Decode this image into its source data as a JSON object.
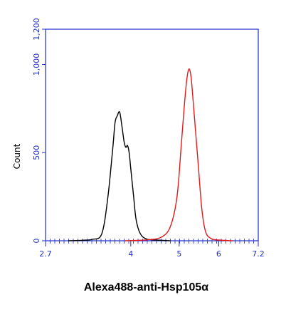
{
  "chart_data": {
    "type": "line",
    "xlabel": "Alexa488-anti-Hsp105α",
    "ylabel": "Count",
    "x_scale": "log",
    "xlim": [
      2.7,
      7.2
    ],
    "ylim": [
      0,
      1200
    ],
    "x_ticks": [
      {
        "value": 2.7,
        "label": "2.7"
      },
      {
        "value": 4,
        "label": "4"
      },
      {
        "value": 5,
        "label": "5"
      },
      {
        "value": 6,
        "label": "6"
      },
      {
        "value": 7.2,
        "label": "7.2"
      }
    ],
    "y_ticks": [
      {
        "value": 0,
        "label": "0"
      },
      {
        "value": 500,
        "label": "500"
      },
      {
        "value": 1000,
        "label": "1,000"
      },
      {
        "value": 1200,
        "label": "1,200"
      }
    ],
    "series": [
      {
        "color": "#000000",
        "points": [
          [
            3.0,
            0
          ],
          [
            3.2,
            3
          ],
          [
            3.35,
            8
          ],
          [
            3.5,
            40
          ],
          [
            3.6,
            250
          ],
          [
            3.68,
            520
          ],
          [
            3.72,
            670
          ],
          [
            3.76,
            710
          ],
          [
            3.8,
            730
          ],
          [
            3.84,
            650
          ],
          [
            3.88,
            560
          ],
          [
            3.91,
            530
          ],
          [
            3.94,
            540
          ],
          [
            3.97,
            500
          ],
          [
            4.0,
            410
          ],
          [
            4.05,
            260
          ],
          [
            4.1,
            120
          ],
          [
            4.18,
            40
          ],
          [
            4.3,
            10
          ],
          [
            4.5,
            4
          ],
          [
            4.8,
            0
          ]
        ]
      },
      {
        "color": "#e31a1c",
        "points": [
          [
            3.9,
            0
          ],
          [
            4.3,
            5
          ],
          [
            4.6,
            20
          ],
          [
            4.8,
            80
          ],
          [
            4.95,
            250
          ],
          [
            5.05,
            550
          ],
          [
            5.15,
            850
          ],
          [
            5.22,
            970
          ],
          [
            5.28,
            930
          ],
          [
            5.35,
            740
          ],
          [
            5.45,
            460
          ],
          [
            5.55,
            180
          ],
          [
            5.65,
            50
          ],
          [
            5.8,
            12
          ],
          [
            6.0,
            4
          ],
          [
            6.4,
            0
          ]
        ]
      }
    ],
    "colors": {
      "axis": "#1f2fc8"
    }
  }
}
